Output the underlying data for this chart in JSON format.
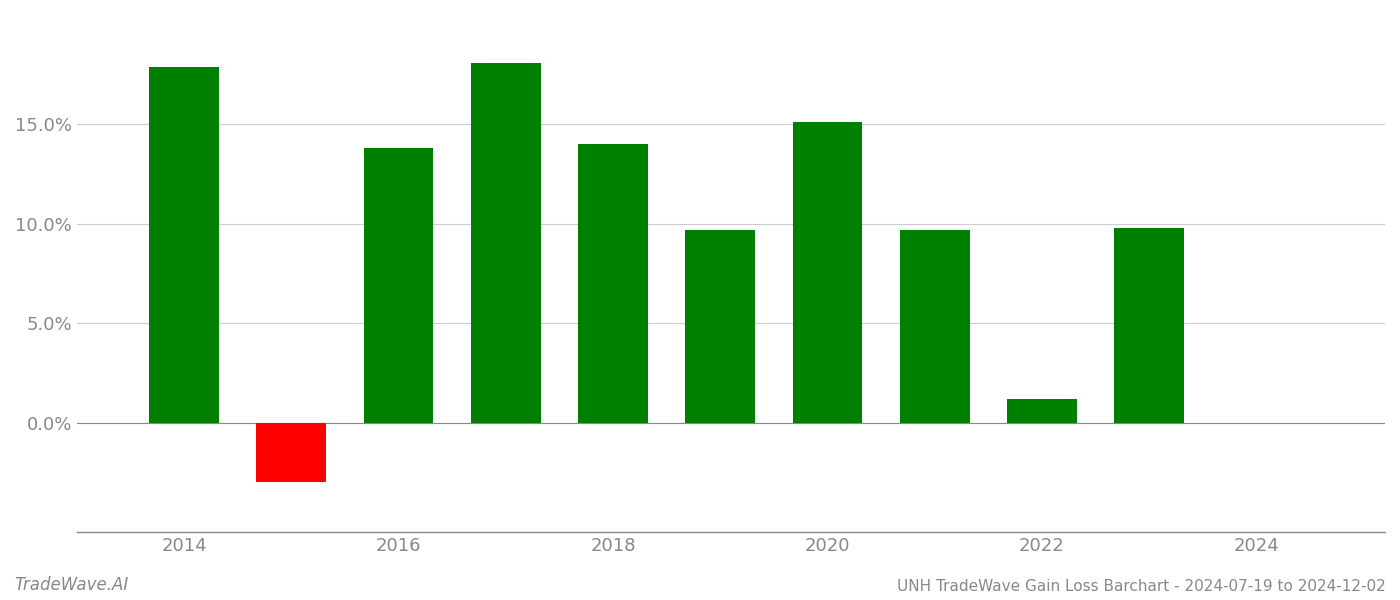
{
  "years": [
    2014,
    2015,
    2016,
    2017,
    2018,
    2019,
    2020,
    2021,
    2022,
    2023
  ],
  "values": [
    0.179,
    -0.03,
    0.138,
    0.181,
    0.14,
    0.097,
    0.151,
    0.097,
    0.012,
    0.098
  ],
  "bar_colors": [
    "#008000",
    "#ff0000",
    "#008000",
    "#008000",
    "#008000",
    "#008000",
    "#008000",
    "#008000",
    "#008000",
    "#008000"
  ],
  "title": "UNH TradeWave Gain Loss Barchart - 2024-07-19 to 2024-12-02",
  "watermark": "TradeWave.AI",
  "ylim_min": -0.055,
  "ylim_max": 0.205,
  "yticks": [
    0.0,
    0.05,
    0.1,
    0.15
  ],
  "ytick_labels": [
    "0.0%",
    "5.0%",
    "10.0%",
    "15.0%"
  ],
  "background_color": "#ffffff",
  "grid_color": "#cccccc",
  "bar_width": 0.65,
  "figsize": [
    14.0,
    6.0
  ],
  "dpi": 100,
  "xlim_min": 2013.0,
  "xlim_max": 2025.2,
  "xticks": [
    2014,
    2016,
    2018,
    2020,
    2022,
    2024
  ]
}
